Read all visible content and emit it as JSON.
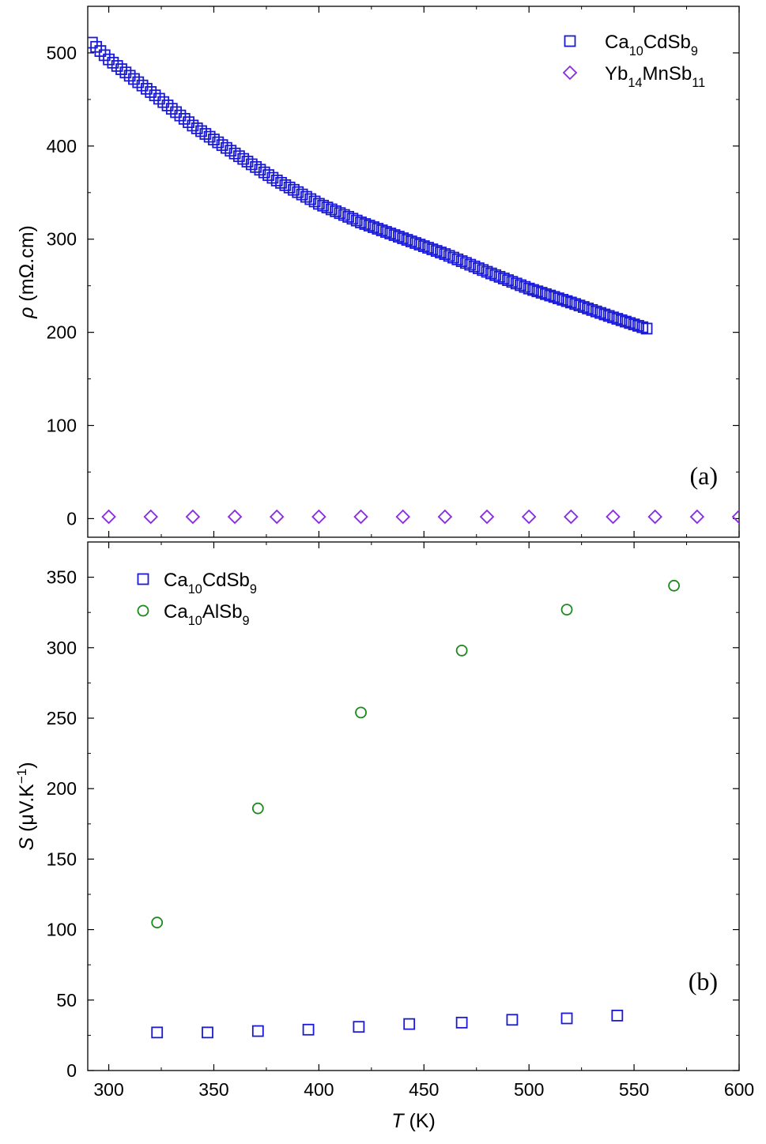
{
  "chart_data": [
    {
      "type": "scatter",
      "panel_label": "(a)",
      "ylabel_symbol": "ρ",
      "ylabel_unit": " (mΩ.cm)",
      "xlim": [
        290,
        600
      ],
      "ylim": [
        -20,
        550
      ],
      "x_ticks": [
        300,
        350,
        400,
        450,
        500,
        550,
        600
      ],
      "y_ticks": [
        0,
        100,
        200,
        300,
        400,
        500
      ],
      "x_tick_labels_shown": false,
      "legend_position": "top-right",
      "series": [
        {
          "name_parts": [
            [
              "Ca",
              ""
            ],
            [
              "10",
              "sub"
            ],
            [
              "CdSb",
              ""
            ],
            [
              "9",
              "sub"
            ]
          ],
          "marker": "square",
          "color": "#1a1ad6",
          "curve": {
            "x_range": [
              292,
              556
            ],
            "x_step": 2,
            "anchors": [
              [
                292,
                511
              ],
              [
                300,
                493
              ],
              [
                320,
                458
              ],
              [
                340,
                422
              ],
              [
                360,
                392
              ],
              [
                380,
                363
              ],
              [
                400,
                338
              ],
              [
                420,
                318
              ],
              [
                440,
                301
              ],
              [
                460,
                284
              ],
              [
                480,
                265
              ],
              [
                500,
                247
              ],
              [
                520,
                232
              ],
              [
                540,
                216
              ],
              [
                556,
                204
              ]
            ]
          }
        },
        {
          "name_parts": [
            [
              "Yb",
              ""
            ],
            [
              "14",
              "sub"
            ],
            [
              "MnSb",
              ""
            ],
            [
              "11",
              "sub"
            ]
          ],
          "marker": "diamond",
          "color": "#8a2be2",
          "x": [
            300,
            320,
            340,
            360,
            380,
            400,
            420,
            440,
            460,
            480,
            500,
            520,
            540,
            560,
            580,
            600
          ],
          "y": [
            2,
            2,
            2,
            2,
            2,
            2,
            2,
            2,
            2,
            2,
            2,
            2,
            2,
            2,
            2,
            2
          ]
        }
      ]
    },
    {
      "type": "scatter",
      "panel_label": "(b)",
      "ylabel_symbol": "S",
      "ylabel_unit_parts": [
        [
          " (μV.K",
          ""
        ],
        [
          "−1",
          "sup"
        ],
        [
          ")",
          ""
        ]
      ],
      "xlabel_symbol": "T",
      "xlabel_unit": " (K)",
      "xlim": [
        290,
        600
      ],
      "ylim": [
        0,
        375
      ],
      "x_ticks": [
        300,
        350,
        400,
        450,
        500,
        550,
        600
      ],
      "y_ticks": [
        0,
        50,
        100,
        150,
        200,
        250,
        300,
        350
      ],
      "legend_position": "top-left",
      "series": [
        {
          "name_parts": [
            [
              "Ca",
              ""
            ],
            [
              "10",
              "sub"
            ],
            [
              "CdSb",
              ""
            ],
            [
              "9",
              "sub"
            ]
          ],
          "marker": "square",
          "color": "#1a1ad6",
          "x": [
            323,
            347,
            371,
            395,
            419,
            443,
            468,
            492,
            518,
            542
          ],
          "y": [
            27,
            27,
            28,
            29,
            31,
            33,
            34,
            36,
            37,
            39
          ]
        },
        {
          "name_parts": [
            [
              "Ca",
              ""
            ],
            [
              "10",
              "sub"
            ],
            [
              "AlSb",
              ""
            ],
            [
              "9",
              "sub"
            ]
          ],
          "marker": "circle",
          "color": "#1a8a1a",
          "x": [
            323,
            371,
            420,
            468,
            518,
            569
          ],
          "y": [
            105,
            186,
            254,
            298,
            327,
            344
          ]
        }
      ]
    }
  ]
}
